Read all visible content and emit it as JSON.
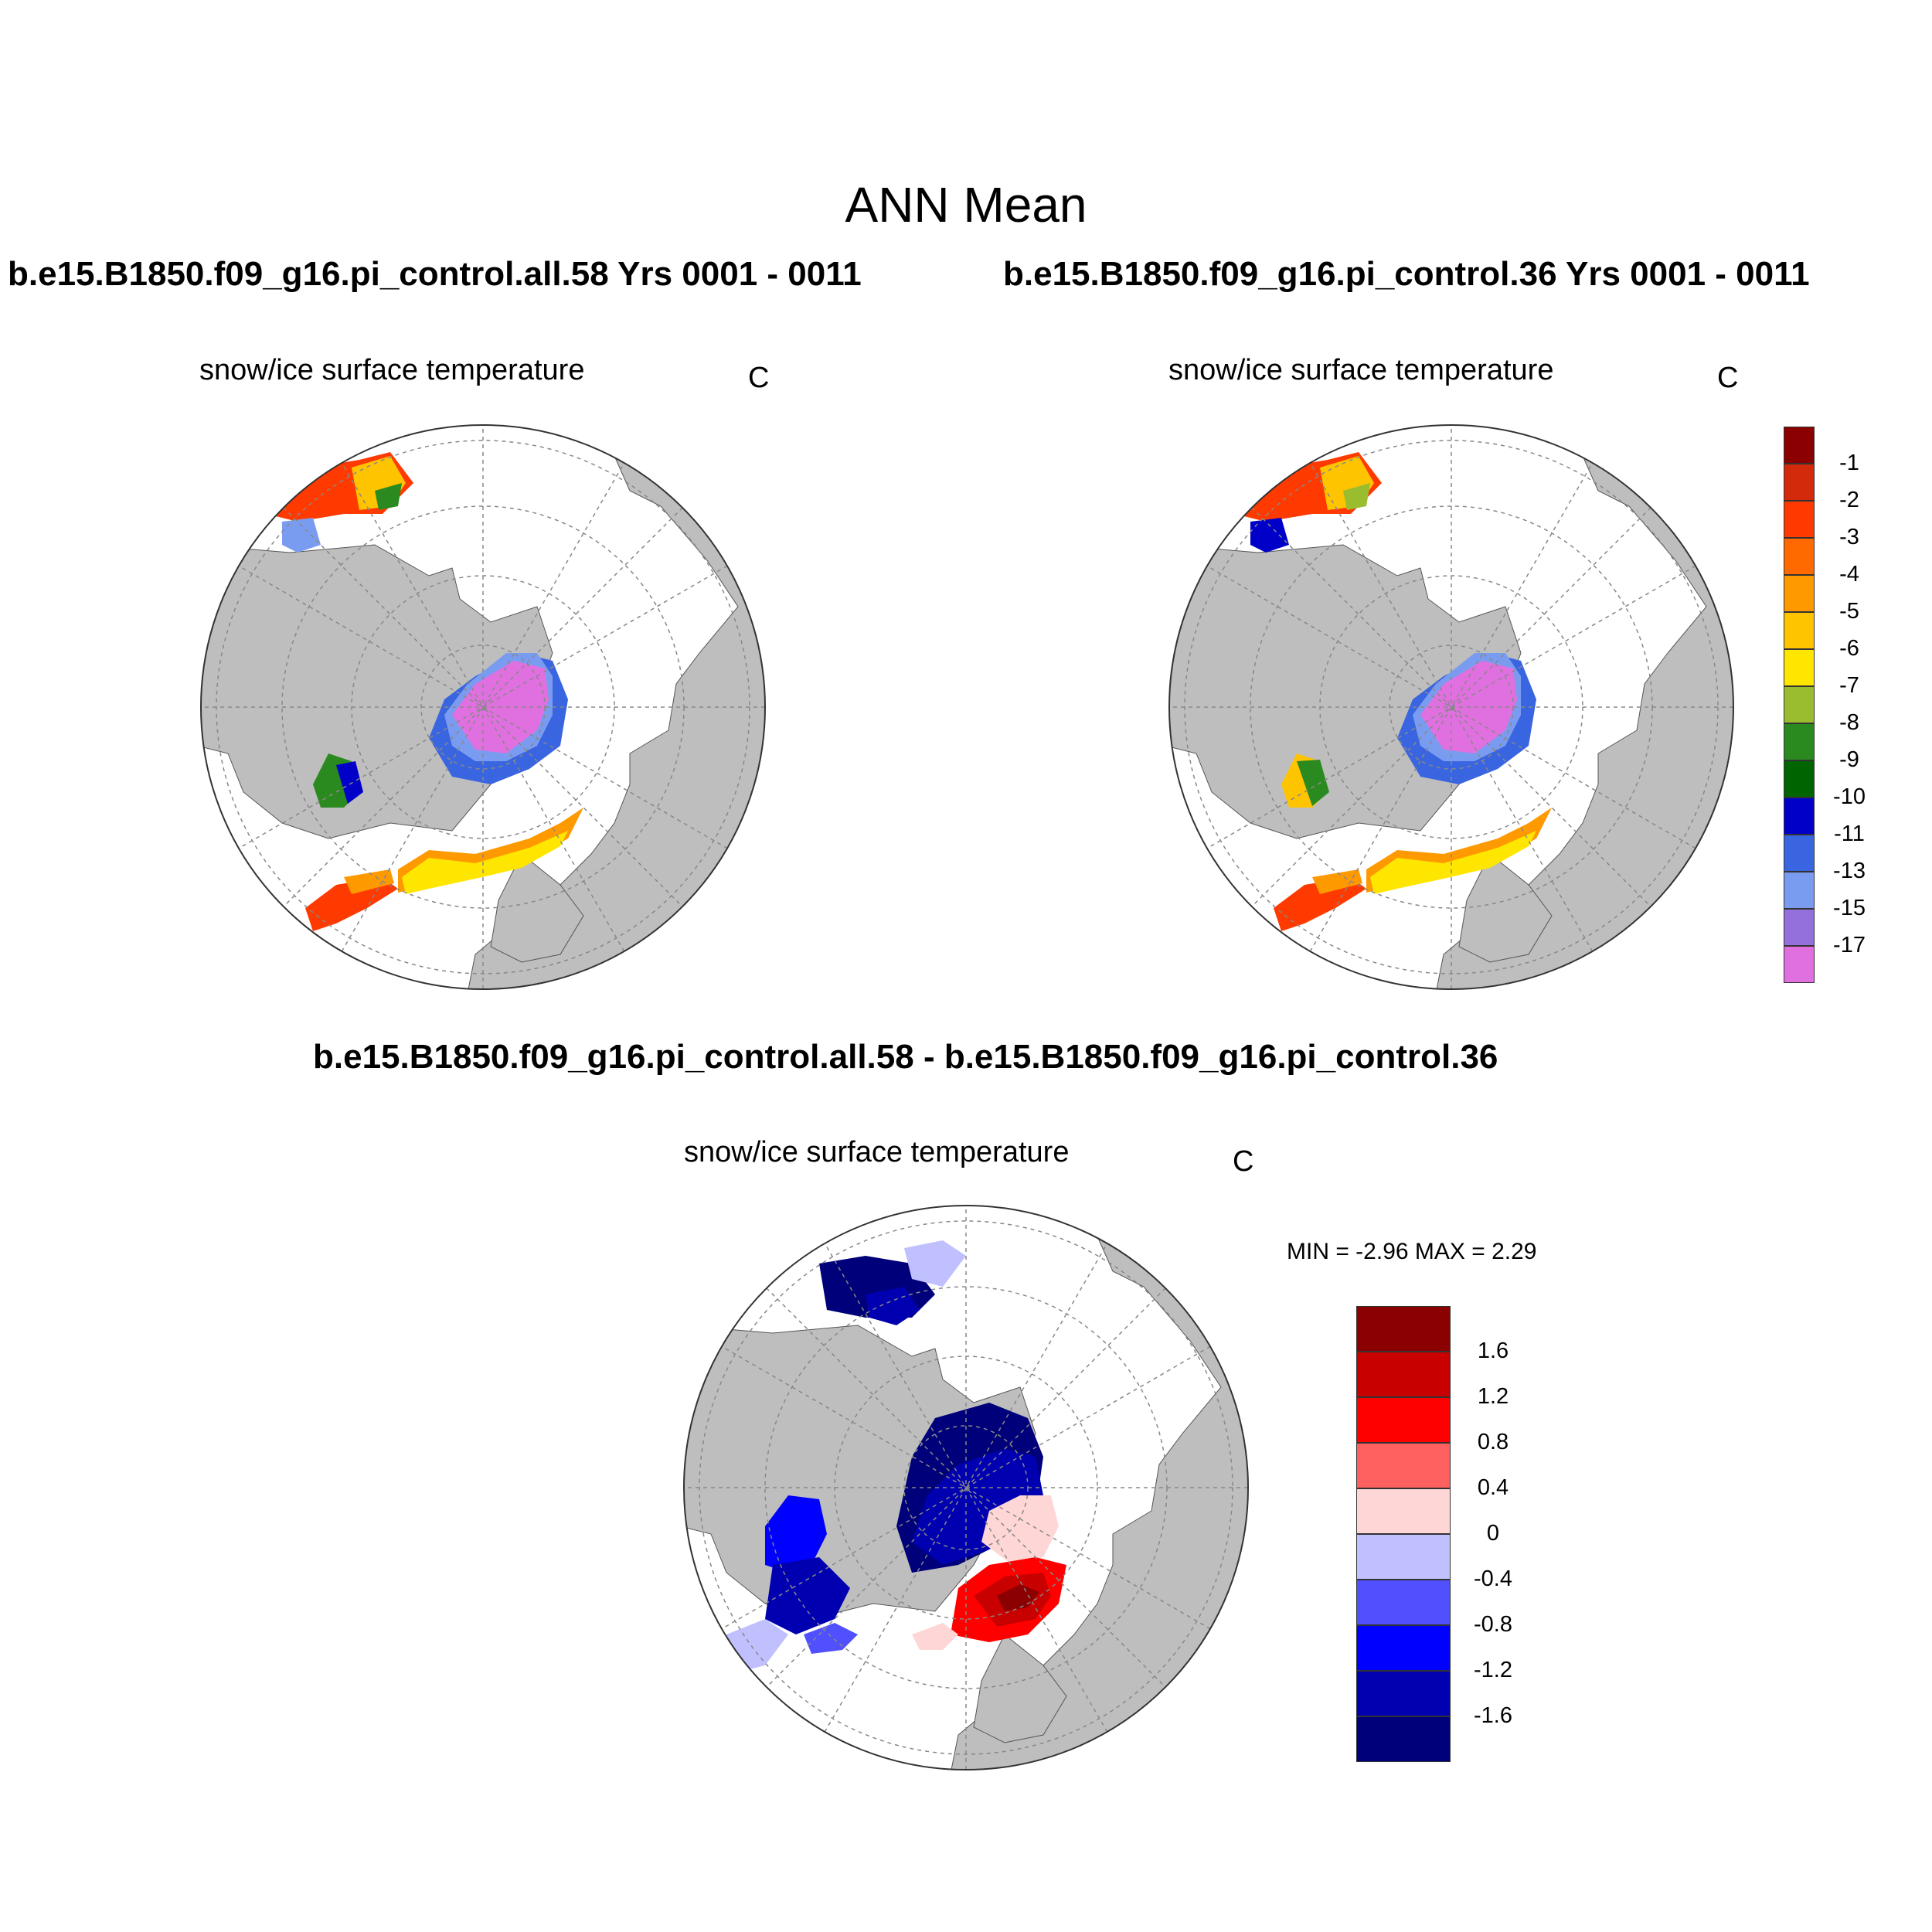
{
  "title": "ANN Mean",
  "panels": [
    {
      "id": "case1",
      "header": "b.e15.B1850.f09_g16.pi_control.all.58  Yrs 0001 - 0011",
      "variable": "snow/ice surface temperature",
      "units": "C"
    },
    {
      "id": "case2",
      "header": "b.e15.B1850.f09_g16.pi_control.36  Yrs 0001 - 0011",
      "variable": "snow/ice surface temperature",
      "units": "C"
    },
    {
      "id": "diff",
      "header": "b.e15.B1850.f09_g16.pi_control.all.58 - b.e15.B1850.f09_g16.pi_control.36",
      "variable": "snow/ice surface temperature",
      "units": "C",
      "minmax": "MIN =  -2.96 MAX =   2.29"
    }
  ],
  "colorbar_abs": {
    "labels": [
      "-1",
      "-2",
      "-3",
      "-4",
      "-5",
      "-6",
      "-7",
      "-8",
      "-9",
      "-10",
      "-11",
      "-13",
      "-15",
      "-17"
    ],
    "colors": [
      "#8b0000",
      "#d42a0c",
      "#ff3a00",
      "#ff6a00",
      "#ff9900",
      "#ffc400",
      "#ffe600",
      "#9abd2f",
      "#2a8a20",
      "#006400",
      "#0000c8",
      "#3a65e0",
      "#7a9cf0",
      "#9370db",
      "#e070e0"
    ]
  },
  "colorbar_diff": {
    "labels": [
      "1.6",
      "1.2",
      "0.8",
      "0.4",
      "0",
      "-0.4",
      "-0.8",
      "-1.2",
      "-1.6"
    ],
    "colors": [
      "#8b0000",
      "#c80000",
      "#ff0000",
      "#ff6060",
      "#ffd6d6",
      "#c0c0ff",
      "#5050ff",
      "#0000ff",
      "#0000b0",
      "#00007a"
    ]
  },
  "map_colors": {
    "land": "#bebebe",
    "ocean": "#ffffff",
    "grid": "#888888"
  }
}
